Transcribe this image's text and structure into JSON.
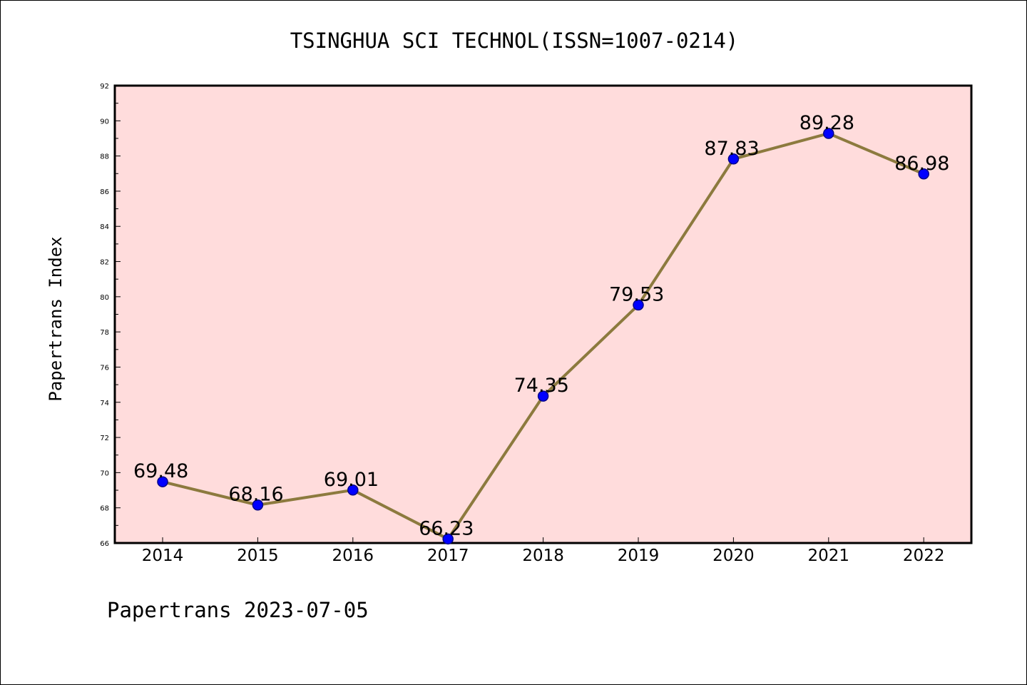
{
  "chart_data": {
    "type": "line",
    "title": "TSINGHUA SCI TECHNOL(ISSN=1007-0214)",
    "ylabel": "Papertrans Index",
    "xlabel": "",
    "categories": [
      "2014",
      "2015",
      "2016",
      "2017",
      "2018",
      "2019",
      "2020",
      "2021",
      "2022"
    ],
    "values": [
      69.48,
      68.16,
      69.01,
      66.23,
      74.35,
      79.53,
      87.83,
      89.28,
      86.98
    ],
    "data_labels": [
      "69.48",
      "68.16",
      "69.01",
      "66.23",
      "74.35",
      "79.53",
      "87.83",
      "89.28",
      "86.98"
    ],
    "ylim": [
      66,
      92
    ],
    "yticks": [
      66,
      68,
      70,
      72,
      74,
      76,
      78,
      80,
      82,
      84,
      86,
      88,
      90,
      92
    ],
    "ytick_labels": [
      "66",
      "68",
      "70",
      "72",
      "74",
      "76",
      "78",
      "80",
      "82",
      "84",
      "86",
      "88",
      "90",
      "92"
    ],
    "grid": false,
    "legend": "none",
    "colors": {
      "plot_background": "#ffdcdc",
      "line": "#8c7a3e",
      "marker_fill": "#0000ff",
      "marker_edge": "#00008b",
      "axis": "#000000"
    }
  },
  "footer": {
    "credit": "Papertrans 2023-07-05"
  }
}
